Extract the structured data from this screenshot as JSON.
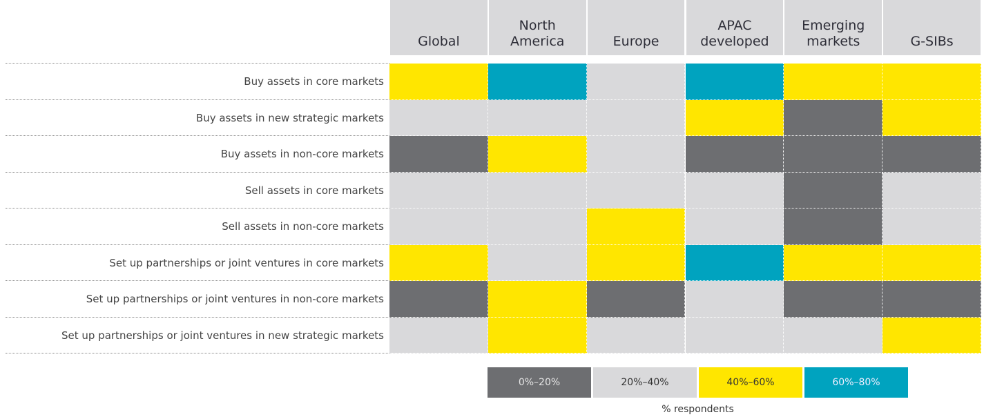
{
  "chart_data": {
    "type": "heatmap",
    "columns": [
      "Global",
      "North America",
      "Europe",
      "APAC developed",
      "Emerging markets",
      "G-SIBs"
    ],
    "rows": [
      "Buy assets in core markets",
      "Buy assets in new strategic markets",
      "Buy assets in non-core markets",
      "Sell assets in core markets",
      "Sell assets in non-core markets",
      "Set up partnerships or joint ventures in core markets",
      "Set up partnerships or joint ventures in non-core markets",
      "Set up partnerships or joint ventures in new strategic markets"
    ],
    "cells": [
      [
        "#ffe600",
        "#00a3bf",
        "#d9d9db",
        "#00a3bf",
        "#ffe600",
        "#ffe600"
      ],
      [
        "#d9d9db",
        "#d9d9db",
        "#d9d9db",
        "#ffe600",
        "#6d6e71",
        "#ffe600"
      ],
      [
        "#6d6e71",
        "#ffe600",
        "#d9d9db",
        "#6d6e71",
        "#6d6e71",
        "#6d6e71"
      ],
      [
        "#d9d9db",
        "#d9d9db",
        "#d9d9db",
        "#d9d9db",
        "#6d6e71",
        "#d9d9db"
      ],
      [
        "#d9d9db",
        "#d9d9db",
        "#ffe600",
        "#d9d9db",
        "#6d6e71",
        "#d9d9db"
      ],
      [
        "#ffe600",
        "#d9d9db",
        "#ffe600",
        "#00a3bf",
        "#ffe600",
        "#ffe600"
      ],
      [
        "#6d6e71",
        "#ffe600",
        "#6d6e71",
        "#d9d9db",
        "#6d6e71",
        "#6d6e71"
      ],
      [
        "#d9d9db",
        "#ffe600",
        "#d9d9db",
        "#d9d9db",
        "#d9d9db",
        "#ffe600"
      ]
    ],
    "legend": [
      {
        "label": "0%–20%",
        "color": "#6d6e71"
      },
      {
        "label": "20%–40%",
        "color": "#d9d9db"
      },
      {
        "label": "40%–60%",
        "color": "#ffe600"
      },
      {
        "label": "60%–80%",
        "color": "#00a3bf"
      }
    ],
    "legend_title": "% respondents"
  }
}
